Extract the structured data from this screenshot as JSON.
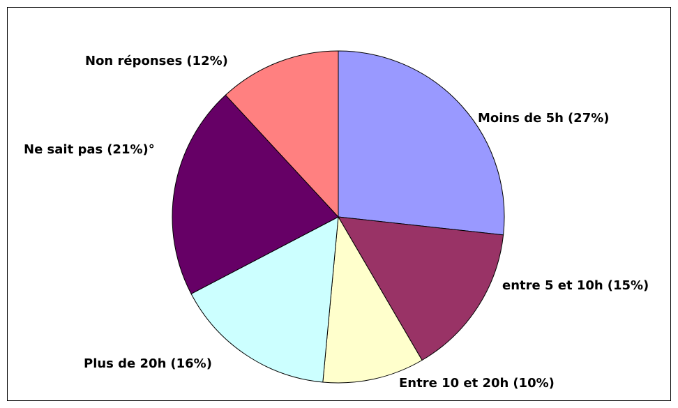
{
  "chart_data": {
    "type": "pie",
    "categories": [
      "Moins de 5h",
      "entre 5 et 10h",
      "Entre 10 et 20h",
      "Plus de 20h",
      "Ne sait pas",
      "Non réponses"
    ],
    "values": [
      27,
      15,
      10,
      16,
      21,
      12
    ],
    "value_labels": [
      "(27%)",
      "(15%)",
      "(10%)",
      "(16%)",
      "(21%)°",
      "(12%)"
    ],
    "colors": [
      "#9999ff",
      "#993366",
      "#ffffcc",
      "#ccffff",
      "#660066",
      "#ff8080"
    ]
  }
}
